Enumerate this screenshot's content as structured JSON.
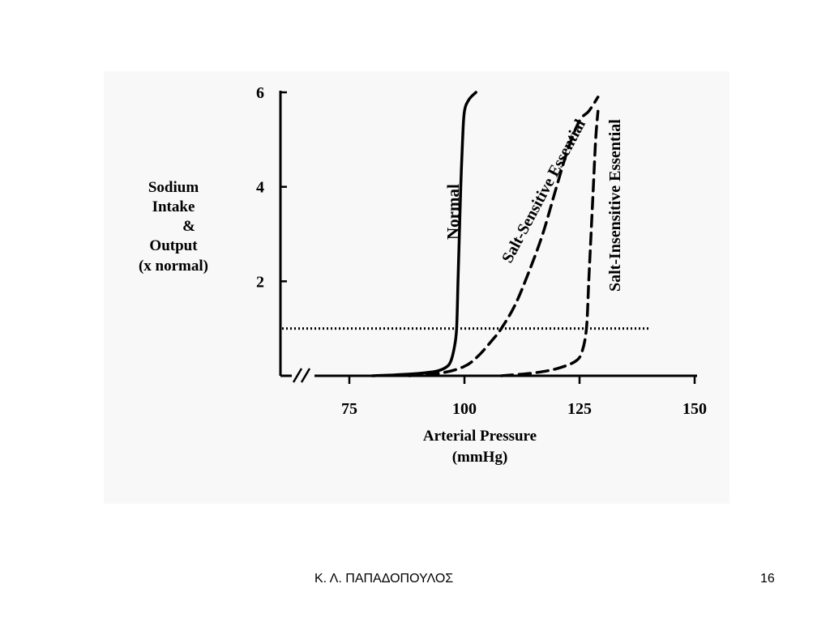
{
  "slide": {
    "footer_author": "Κ. Λ. ΠΑΠΑΔΟΠΟΥΛΟΣ",
    "page_number": "16"
  },
  "chart_data": {
    "type": "line",
    "title": "",
    "xlabel_lines": [
      "Arterial Pressure",
      "(mmHg)"
    ],
    "ylabel_lines": [
      "Sodium",
      "Intake",
      "&",
      "Output",
      "(x normal)"
    ],
    "xlim": [
      62,
      150
    ],
    "ylim": [
      0,
      6
    ],
    "x_axis_break": true,
    "x_ticks": [
      75,
      100,
      125,
      150
    ],
    "y_ticks": [
      2,
      4,
      6
    ],
    "grid": false,
    "legend": "none (curves labeled inline)",
    "reference_line": {
      "style": "dotted",
      "y": 1,
      "x_range": [
        62,
        140
      ]
    },
    "series": [
      {
        "name": "Normal",
        "style": "solid",
        "points": [
          [
            80,
            0
          ],
          [
            85,
            0.02
          ],
          [
            90,
            0.05
          ],
          [
            94,
            0.1
          ],
          [
            96,
            0.18
          ],
          [
            97,
            0.3
          ],
          [
            97.8,
            0.6
          ],
          [
            98.3,
            1.0
          ],
          [
            98.6,
            2.0
          ],
          [
            98.9,
            3.0
          ],
          [
            99.2,
            4.0
          ],
          [
            99.6,
            5.0
          ],
          [
            100,
            5.6
          ],
          [
            101,
            5.85
          ],
          [
            102.5,
            6.0
          ]
        ]
      },
      {
        "name": "Salt-Sensitive Essential",
        "style": "dashed",
        "points": [
          [
            88,
            0
          ],
          [
            95,
            0.06
          ],
          [
            100,
            0.2
          ],
          [
            103,
            0.42
          ],
          [
            106,
            0.75
          ],
          [
            108,
            1.0
          ],
          [
            111,
            1.5
          ],
          [
            114,
            2.2
          ],
          [
            117,
            3.0
          ],
          [
            120,
            4.0
          ],
          [
            122.5,
            4.8
          ],
          [
            125,
            5.4
          ],
          [
            127,
            5.6
          ],
          [
            129,
            5.9
          ]
        ]
      },
      {
        "name": "Salt-Insensitive Essential",
        "style": "dashed",
        "points": [
          [
            108,
            0
          ],
          [
            115,
            0.06
          ],
          [
            120,
            0.15
          ],
          [
            124,
            0.3
          ],
          [
            125.5,
            0.5
          ],
          [
            126.5,
            1.0
          ],
          [
            127,
            2.0
          ],
          [
            127.5,
            3.0
          ],
          [
            128,
            4.0
          ],
          [
            128.5,
            5.0
          ],
          [
            129,
            5.6
          ]
        ]
      }
    ]
  }
}
